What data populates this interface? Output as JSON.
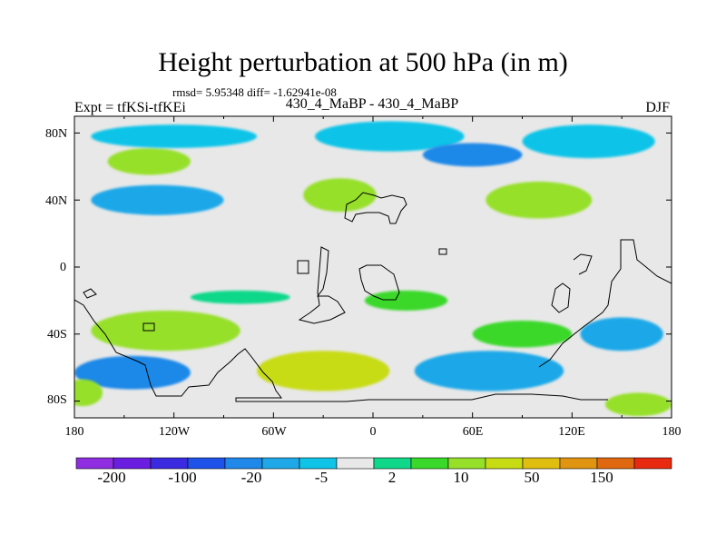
{
  "title": "Height perturbation at 500 hPa (in m)",
  "stats": "rmsd= 5.95348 diff= -1.62941e-08",
  "experiment": "Expt = tfKSi-tfKEi",
  "experiment_pair": "430_4_MaBP - 430_4_MaBP",
  "season": "DJF",
  "colors": {
    "neutral": "#e8e8e8",
    "cb": [
      "#8e2ee0",
      "#6a1fe0",
      "#3a2ae0",
      "#1f52e8",
      "#1f88e8",
      "#1ea8e8",
      "#10c4e8",
      "#e8e8e8",
      "#10d88a",
      "#3ad82a",
      "#96e02a",
      "#c8dc14",
      "#e0be10",
      "#e09410",
      "#e06810",
      "#e82a10"
    ]
  },
  "map": {
    "lon_range": [
      -180,
      180
    ],
    "lat_range": [
      -90,
      90
    ],
    "x_ticks": [
      "180",
      "120W",
      "60W",
      "0",
      "60E",
      "120E",
      "180"
    ],
    "y_ticks": [
      "80N",
      "40N",
      "0",
      "40S",
      "80S"
    ],
    "fields": [
      {
        "name": "pos-band-north-pacific",
        "c": "#96e02a",
        "lon": -135,
        "lat": 63,
        "rx": 25,
        "ry": 8
      },
      {
        "name": "neg-band-north-pacific",
        "c": "#1ea8e8",
        "lon": -130,
        "lat": 40,
        "rx": 40,
        "ry": 9
      },
      {
        "name": "neg-north-pole-west",
        "c": "#10c4e8",
        "lon": -120,
        "lat": 78,
        "rx": 50,
        "ry": 7
      },
      {
        "name": "pos-north-america",
        "c": "#96e02a",
        "lon": -20,
        "lat": 43,
        "rx": 22,
        "ry": 10
      },
      {
        "name": "neg-north-pole-central",
        "c": "#10c4e8",
        "lon": 10,
        "lat": 78,
        "rx": 45,
        "ry": 9
      },
      {
        "name": "neg-north-pole-east",
        "c": "#1f88e8",
        "lon": 60,
        "lat": 67,
        "rx": 30,
        "ry": 7
      },
      {
        "name": "pos-asia",
        "c": "#96e02a",
        "lon": 100,
        "lat": 40,
        "rx": 32,
        "ry": 11
      },
      {
        "name": "neg-arctic-east",
        "c": "#10c4e8",
        "lon": 130,
        "lat": 75,
        "rx": 40,
        "ry": 10
      },
      {
        "name": "pos-atlantic-tropics",
        "c": "#10d88a",
        "lon": -80,
        "lat": -18,
        "rx": 30,
        "ry": 4
      },
      {
        "name": "pos-south-atlantic",
        "c": "#3ad82a",
        "lon": 20,
        "lat": -20,
        "rx": 25,
        "ry": 6
      },
      {
        "name": "pos-southern-pacific",
        "c": "#96e02a",
        "lon": -125,
        "lat": -38,
        "rx": 45,
        "ry": 12
      },
      {
        "name": "neg-southern-ocean-west",
        "c": "#1f88e8",
        "lon": -145,
        "lat": -63,
        "rx": 35,
        "ry": 10
      },
      {
        "name": "pos-southern-ocean-central",
        "c": "#c8dc14",
        "lon": -30,
        "lat": -62,
        "rx": 40,
        "ry": 12
      },
      {
        "name": "neg-southern-ocean-east",
        "c": "#1ea8e8",
        "lon": 70,
        "lat": -62,
        "rx": 45,
        "ry": 12
      },
      {
        "name": "pos-indian-ocean",
        "c": "#3ad82a",
        "lon": 90,
        "lat": -40,
        "rx": 30,
        "ry": 8
      },
      {
        "name": "neg-australia-east",
        "c": "#1ea8e8",
        "lon": 150,
        "lat": -40,
        "rx": 25,
        "ry": 10
      },
      {
        "name": "pos-antarctic-edge",
        "c": "#96e02a",
        "lon": -175,
        "lat": -75,
        "rx": 12,
        "ry": 8
      },
      {
        "name": "pos-antarctic-east",
        "c": "#96e02a",
        "lon": 160,
        "lat": -82,
        "rx": 20,
        "ry": 7
      }
    ]
  },
  "colorbar_labels": [
    "-200",
    "-100",
    "-20",
    "-5",
    "2",
    "10",
    "50",
    "150"
  ]
}
